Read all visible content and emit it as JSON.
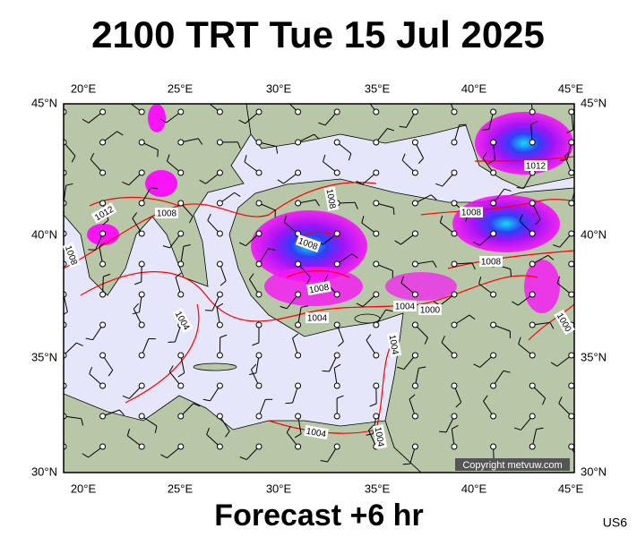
{
  "title": "2100 TRT Tue 15 Jul 2025",
  "map": {
    "lon_labels": [
      "20°E",
      "25°E",
      "30°E",
      "35°E",
      "40°E",
      "45°E"
    ],
    "lat_labels": [
      "45°N",
      "40°N",
      "35°N",
      "30°N"
    ],
    "isobar_labels": [
      "1012",
      "1008",
      "1008",
      "1012",
      "1008",
      "1008",
      "1008",
      "1008",
      "1004",
      "1004",
      "1000",
      "1004",
      "1004",
      "1004",
      "1004",
      "1000",
      "1008"
    ],
    "copyright": "Copyright metvuw.com"
  },
  "footer": {
    "caption": "Forecast +6 hr",
    "code": "US6"
  }
}
